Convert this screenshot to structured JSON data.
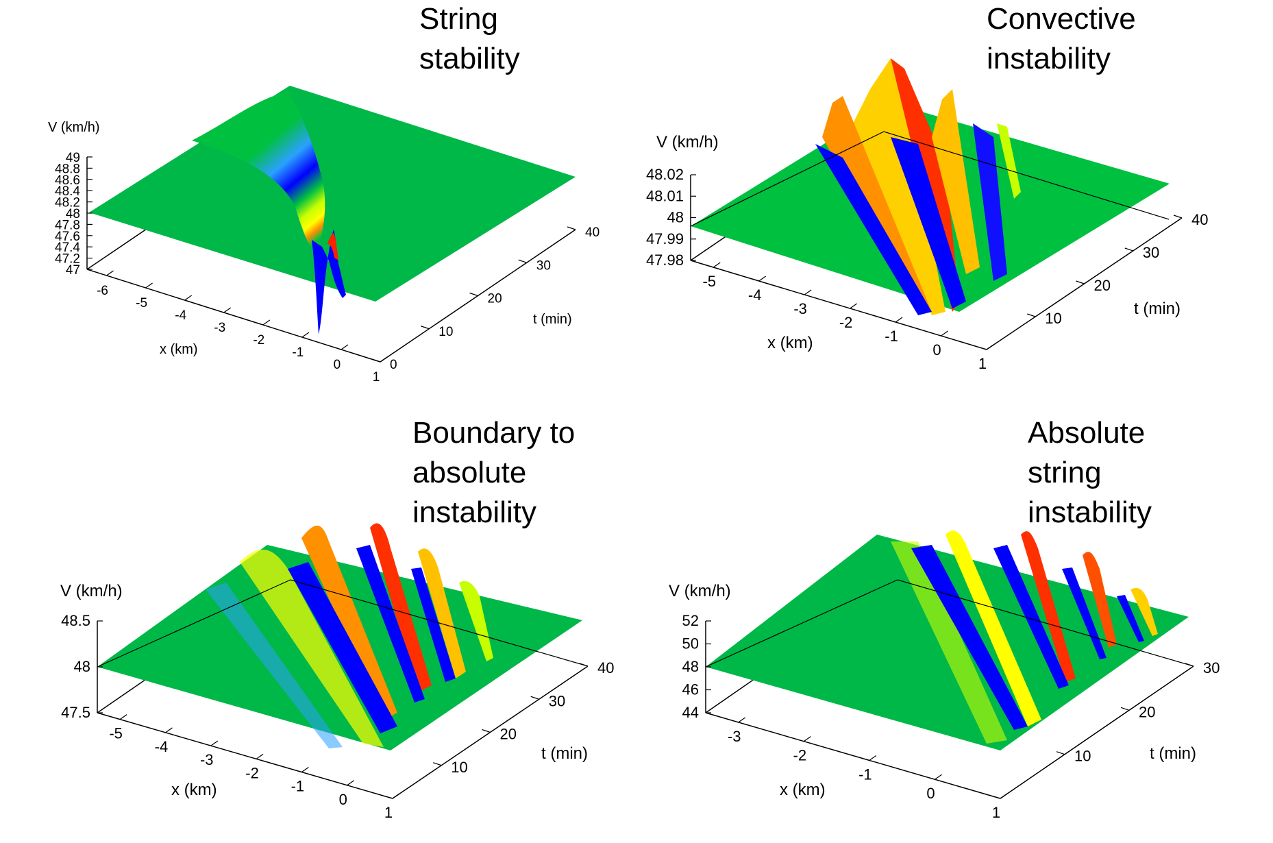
{
  "figure": {
    "panels": 4
  },
  "chart_data": [
    {
      "type": "surface",
      "title": [
        "String",
        "stability"
      ],
      "xlabel": "x (km)",
      "ylabel": "t (min)",
      "zlabel": "V (km/h)",
      "x_ticks": [
        "-6",
        "-5",
        "-4",
        "-3",
        "-2",
        "-1",
        "0",
        "1"
      ],
      "t_ticks": [
        "0",
        "10",
        "20",
        "30",
        "40"
      ],
      "z_ticks": [
        "47",
        "47.2",
        "47.4",
        "47.6",
        "47.8",
        "48",
        "48.2",
        "48.4",
        "48.6",
        "48.8",
        "49"
      ],
      "xlim": [
        -6.5,
        1
      ],
      "tlim": [
        0,
        40
      ],
      "zlim": [
        47,
        49
      ],
      "baseline": 48,
      "series": [
        {
          "x": [
            0.1,
            -0.9,
            -1.9,
            -2.9,
            -3.8
          ],
          "t": [
            0,
            10,
            20,
            30,
            40
          ],
          "peak_dip": [
            -1.0,
            -0.35,
            -0.15,
            0.06,
            0.02
          ]
        }
      ]
    },
    {
      "type": "surface",
      "title": [
        "Convective",
        "instability"
      ],
      "xlabel": "x (km)",
      "ylabel": "t (min)",
      "zlabel": "V (km/h)",
      "x_ticks": [
        "-5",
        "-4",
        "-3",
        "-2",
        "-1",
        "0",
        "1"
      ],
      "t_ticks": [
        "10",
        "20",
        "30",
        "40"
      ],
      "z_ticks": [
        "47.98",
        "47.99",
        "48",
        "48.01",
        "48.02"
      ],
      "xlim": [
        -5.5,
        1
      ],
      "tlim": [
        0,
        40
      ],
      "zlim": [
        47.975,
        48.025
      ],
      "baseline": 48,
      "series": [
        {
          "x": [
            0.2,
            -0.6,
            -1.5,
            -2.4,
            -3.3
          ],
          "t": [
            0,
            10,
            20,
            30,
            40
          ],
          "amplitude": [
            0.002,
            0.008,
            0.015,
            0.022,
            0.03
          ]
        }
      ]
    },
    {
      "type": "surface",
      "title": [
        "Boundary to",
        "absolute",
        "instability"
      ],
      "xlabel": "x (km)",
      "ylabel": "t (min)",
      "zlabel": "V (km/h)",
      "x_ticks": [
        "-5",
        "-4",
        "-3",
        "-2",
        "-1",
        "0",
        "1"
      ],
      "t_ticks": [
        "10",
        "20",
        "30",
        "40"
      ],
      "z_ticks": [
        "47.5",
        "48",
        "48.5"
      ],
      "xlim": [
        -5.5,
        1
      ],
      "tlim": [
        0,
        40
      ],
      "zlim": [
        47.5,
        48.5
      ],
      "baseline": 48,
      "series": [
        {
          "x": [
            0.3,
            -0.5,
            -1.4,
            -2.3,
            -3.2
          ],
          "t": [
            0,
            10,
            20,
            30,
            40
          ],
          "amplitude": [
            0.02,
            0.1,
            0.2,
            0.3,
            0.4
          ]
        }
      ]
    },
    {
      "type": "surface",
      "title": [
        "Absolute",
        "string",
        "instability"
      ],
      "xlabel": "x (km)",
      "ylabel": "t (min)",
      "zlabel": "V (km/h)",
      "x_ticks": [
        "-3",
        "-2",
        "-1",
        "0",
        "1"
      ],
      "t_ticks": [
        "10",
        "20",
        "30"
      ],
      "z_ticks": [
        "44",
        "46",
        "48",
        "50",
        "52"
      ],
      "xlim": [
        -3.5,
        1
      ],
      "tlim": [
        0,
        30
      ],
      "zlim": [
        44,
        52
      ],
      "baseline": 48,
      "series": [
        {
          "x": [
            0.3,
            -0.3,
            -1.0,
            -1.7
          ],
          "t": [
            0,
            10,
            20,
            30
          ],
          "amplitude": [
            0.3,
            1.2,
            2.5,
            4.0
          ]
        }
      ]
    }
  ]
}
